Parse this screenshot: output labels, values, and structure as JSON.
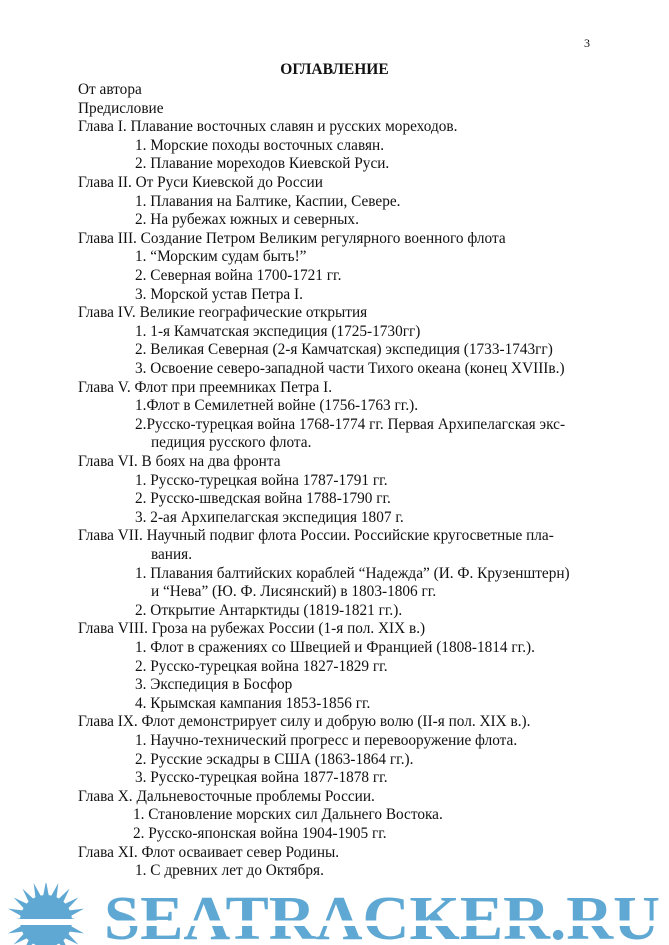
{
  "page_number": "3",
  "title": "ОГЛАВЛЕНИЕ",
  "lines": [
    {
      "type": "chapter",
      "text": "От автора"
    },
    {
      "type": "chapter",
      "text": "Предисловие"
    },
    {
      "type": "chapter",
      "text": "Глава I. Плавание восточных славян и русских мореходов."
    },
    {
      "type": "item",
      "text": "1. Морские походы восточных славян."
    },
    {
      "type": "item",
      "text": "2. Плавание мореходов Киевской Руси."
    },
    {
      "type": "chapter",
      "text": "Глава II. От Руси Киевской до России"
    },
    {
      "type": "item",
      "text": "1. Плавания на Балтике, Каспии, Севере."
    },
    {
      "type": "item",
      "text": "2. На рубежах южных и северных."
    },
    {
      "type": "chapter",
      "text": "Глава III. Создание Петром Великим регулярного военного флота"
    },
    {
      "type": "item",
      "text": "1. “Морским судам быть!”"
    },
    {
      "type": "item",
      "text": "2. Северная война 1700-1721 гг."
    },
    {
      "type": "item",
      "text": "3. Морской устав Петра I."
    },
    {
      "type": "chapter",
      "text": "Глава IV. Великие географические открытия"
    },
    {
      "type": "item",
      "text": "1. 1-я Камчатская экспедиция (1725-1730гг)"
    },
    {
      "type": "item",
      "text": "2. Великая Северная (2-я Камчатская) экспедиция (1733-1743гг)"
    },
    {
      "type": "item",
      "text": "3. Освоение северо-западной части Тихого океана (конец XVIIIв.)"
    },
    {
      "type": "chapter",
      "text": "Глава V. Флот при преемниках Петра I."
    },
    {
      "type": "item",
      "text": "1.Флот в Семилетней войне (1756-1763 гг.)."
    },
    {
      "type": "item",
      "text": "2.Русско-турецкая война 1768-1774 гг. Первая Архипелагская экс-"
    },
    {
      "type": "cont",
      "text": "педиция русского флота."
    },
    {
      "type": "chapter",
      "text": "Глава VI. В боях на два фронта"
    },
    {
      "type": "item",
      "text": "1. Русско-турецкая война 1787-1791 гг."
    },
    {
      "type": "item",
      "text": "2. Русско-шведская война 1788-1790 гг."
    },
    {
      "type": "item",
      "text": "3. 2-ая Архипелагская экспедиция 1807 г."
    },
    {
      "type": "chapter",
      "text": "Глава VII. Научный подвиг флота России. Российские кругосветные пла-"
    },
    {
      "type": "cont",
      "text": "вания."
    },
    {
      "type": "item",
      "text": "1. Плавания балтийских кораблей “Надежда” (И. Ф. Крузенштерн)"
    },
    {
      "type": "cont",
      "text": "и “Нева” (Ю. Ф. Лисянский) в 1803-1806 гг."
    },
    {
      "type": "item",
      "text": "2. Открытие Антарктиды (1819-1821 гг.)."
    },
    {
      "type": "chapter",
      "text": "Глава VIII. Гроза на рубежах России (1-я пол. XIX в.)"
    },
    {
      "type": "item",
      "text": "1. Флот в сражениях со Швецией и Францией (1808-1814 гг.)."
    },
    {
      "type": "item",
      "text": "2. Русско-турецкая война 1827-1829 гг."
    },
    {
      "type": "item",
      "text": "3. Экспедиция в Босфор"
    },
    {
      "type": "item",
      "text": "4. Крымская кампания 1853-1856 гг."
    },
    {
      "type": "chapter",
      "text": "Глава IX. Флот демонстрирует силу и добрую волю (II-я пол. XIX в.)."
    },
    {
      "type": "item",
      "text": "1. Научно-технический прогресс и перевооружение флота."
    },
    {
      "type": "item",
      "text": "2. Русские эскадры в США (1863-1864 гг.)."
    },
    {
      "type": "item",
      "text": "3. Русско-турецкая война 1877-1878 гг."
    },
    {
      "type": "chapter",
      "text": "Глава X. Дальневосточные проблемы России."
    },
    {
      "type": "item wide",
      "text": "1.  Становление морских сил Дальнего Востока."
    },
    {
      "type": "item wide",
      "text": "2.  Русско-японская война 1904-1905 гг."
    },
    {
      "type": "chapter",
      "text": "Глава XI. Флот осваивает север Родины."
    },
    {
      "type": "item",
      "text": "1. С древних лет до Октября."
    }
  ],
  "watermark": {
    "text": "SEATRACKER.RU",
    "icon": "sun-icon",
    "color": "#5fa8d3"
  }
}
